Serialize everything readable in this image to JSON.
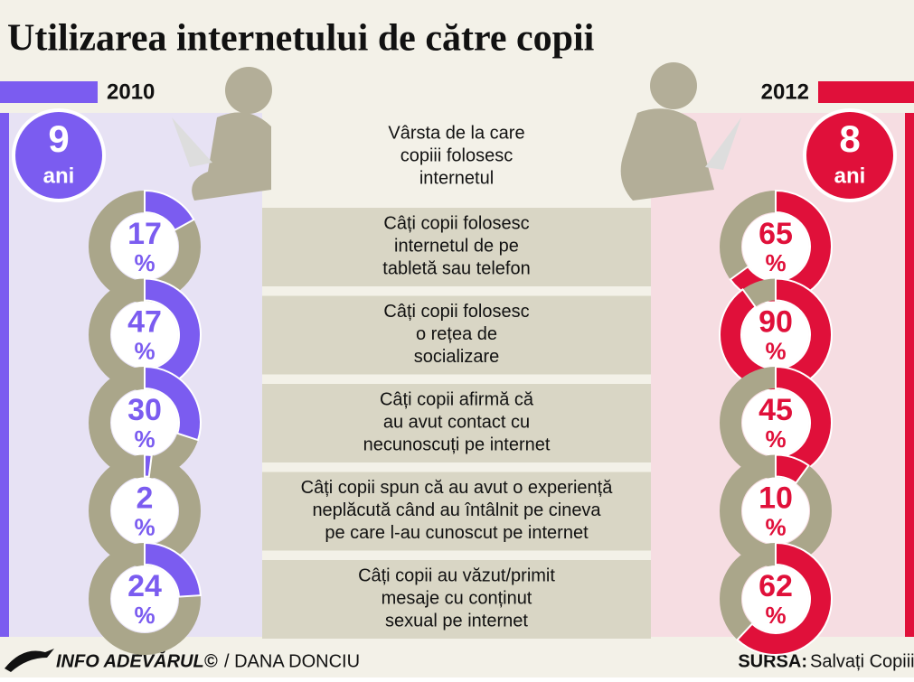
{
  "header": {
    "title": "Utilizarea internetului de către copii",
    "year_left": "2010",
    "year_right": "2012"
  },
  "age": {
    "question": [
      "Vârsta de la care",
      "copiii folosesc",
      "internetul"
    ],
    "value_2010": 9,
    "value_2012": 8,
    "unit": "ani"
  },
  "unit": "%",
  "rows": [
    {
      "question": [
        "Câți copii folosesc",
        "internetul de pe",
        "tabletă sau telefon"
      ],
      "value_2010": 17,
      "value_2012": 65
    },
    {
      "question": [
        "Câți copii folosesc",
        "o rețea de",
        "socializare"
      ],
      "value_2010": 47,
      "value_2012": 90
    },
    {
      "question": [
        "Câți copii afirmă că",
        "au avut contact cu",
        "necunoscuți pe internet"
      ],
      "value_2010": 30,
      "value_2012": 45
    },
    {
      "question": [
        "Câți copii spun că au avut o experiență",
        "neplăcută când au întâlnit pe cineva",
        "pe care l-au cunoscut pe internet"
      ],
      "value_2010": 2,
      "value_2012": 10
    },
    {
      "question": [
        "Câți copii au văzut/primit",
        "mesaje cu conținut",
        "sexual pe internet"
      ],
      "value_2010": 24,
      "value_2012": 62
    }
  ],
  "footer": {
    "brand": "INFO ADEVĂRUL©",
    "author": "/ DANA DONCIU",
    "source_label": "SURSA:",
    "source": "Salvați Copiii"
  }
}
